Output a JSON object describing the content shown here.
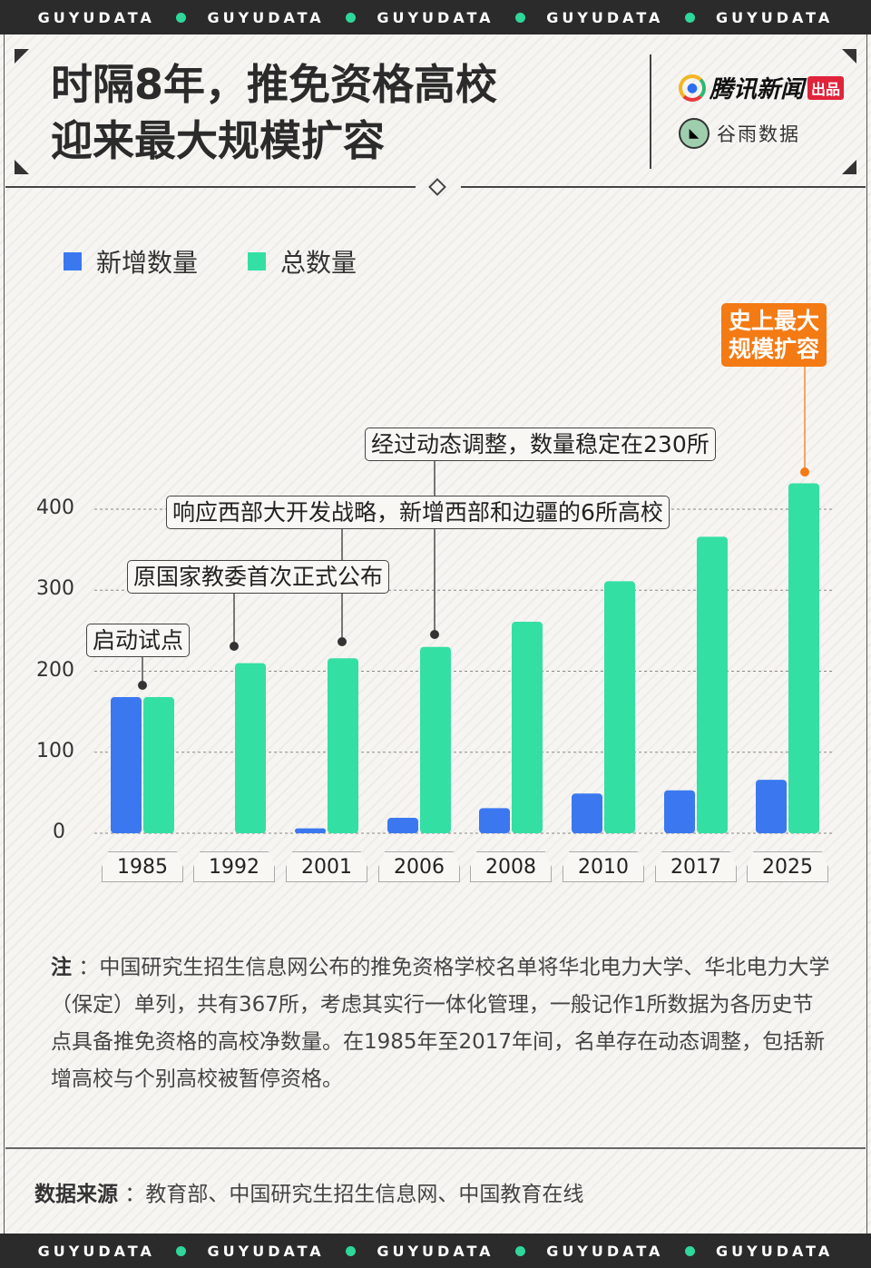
{
  "band_text": "GUYUDATA",
  "title": {
    "line1": "时隔8年，推免资格高校",
    "line2": "迎来最大规模扩容"
  },
  "logos": {
    "tencent": "腾讯新闻",
    "tencent_tag": "出品",
    "guyu": "谷雨数据"
  },
  "chart_data": {
    "type": "bar",
    "categories": [
      "1985",
      "1992",
      "2001",
      "2006",
      "2008",
      "2010",
      "2017",
      "2025"
    ],
    "series": [
      {
        "name": "新增数量",
        "color": "#3b78f0",
        "values": [
          168,
          0,
          6,
          19,
          31,
          49,
          53,
          66
        ]
      },
      {
        "name": "总数量",
        "color": "#34dfa4",
        "values": [
          168,
          210,
          216,
          230,
          261,
          311,
          366,
          432
        ]
      }
    ],
    "yticks": [
      "0",
      "100",
      "200",
      "300",
      "400"
    ],
    "ylim": [
      0,
      400
    ],
    "grid": true,
    "legend": "top-left",
    "annotations": [
      {
        "text": "启动试点",
        "category": "1985"
      },
      {
        "text": "原国家教委首次正式公布",
        "category": "1992"
      },
      {
        "text": "响应西部大开发战略，新增西部和边疆的6所高校",
        "category": "2001"
      },
      {
        "text": "经过动态调整，数量稳定在230所",
        "category": "2006"
      },
      {
        "line1": "史上最大",
        "line2": "规模扩容",
        "category": "2025",
        "color": "#f47a14"
      }
    ]
  },
  "note": {
    "label": "注",
    "text": "：中国研究生招生信息网公布的推免资格学校名单将华北电力大学、华北电力大学（保定）单列，共有367所，考虑其实行一体化管理，一般记作1所数据为各历史节点具备推免资格的高校净数量。在1985年至2017年间，名单存在动态调整，包括新增高校与个别高校被暂停资格。"
  },
  "source": {
    "label": "数据来源",
    "text": "：教育部、中国研究生招生信息网、中国教育在线"
  }
}
